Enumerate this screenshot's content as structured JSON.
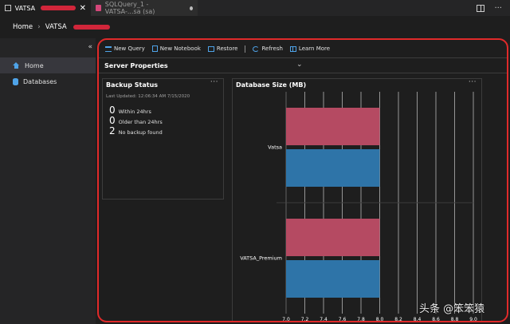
{
  "tabs": [
    {
      "label": "VATSA",
      "active": true
    },
    {
      "label": "SQLQuery_1 - VATSA-...sa (sa)",
      "active": false
    }
  ],
  "breadcrumb": {
    "home": "Home",
    "server": "VATSA"
  },
  "sidebar": {
    "collapse_glyph": "«",
    "items": [
      {
        "label": "Home",
        "icon": "home-icon",
        "selected": true
      },
      {
        "label": "Databases",
        "icon": "database-icon",
        "selected": false
      }
    ]
  },
  "toolbar": {
    "new_query": "New Query",
    "new_notebook": "New Notebook",
    "restore": "Restore",
    "refresh": "Refresh",
    "learn_more": "Learn More"
  },
  "server_properties": {
    "label": "Server Properties"
  },
  "backup_status": {
    "title": "Backup Status",
    "last_updated": "Last Updated: 12:06:34 AM 7/15/2020",
    "rows": [
      {
        "count": "0",
        "label": "Within 24hrs"
      },
      {
        "count": "0",
        "label": "Older than 24hrs"
      },
      {
        "count": "2",
        "label": "No backup found"
      }
    ]
  },
  "database_size": {
    "title": "Database Size (MB)"
  },
  "chart_data": {
    "type": "bar",
    "orientation": "horizontal",
    "title": "Database Size (MB)",
    "categories": [
      "Vatsa",
      "VATSA_Premium"
    ],
    "series": [
      {
        "values": [
          8.0,
          8.0
        ],
        "color": "#b54a62"
      },
      {
        "values": [
          8.0,
          8.0
        ],
        "color": "#2e74a8"
      }
    ],
    "xlim": [
      7.0,
      9.0
    ],
    "xticks": [
      "7.0",
      "7.2",
      "7.4",
      "7.6",
      "7.8",
      "8.0",
      "8.2",
      "8.4",
      "8.6",
      "8.8",
      "9.0"
    ],
    "grid": true
  },
  "watermark": "头条 @笨笨猿",
  "colors": {
    "accent": "#4fa3e8",
    "highlight_border": "#e02a2a",
    "series1": "#b54a62",
    "series2": "#2e74a8"
  }
}
